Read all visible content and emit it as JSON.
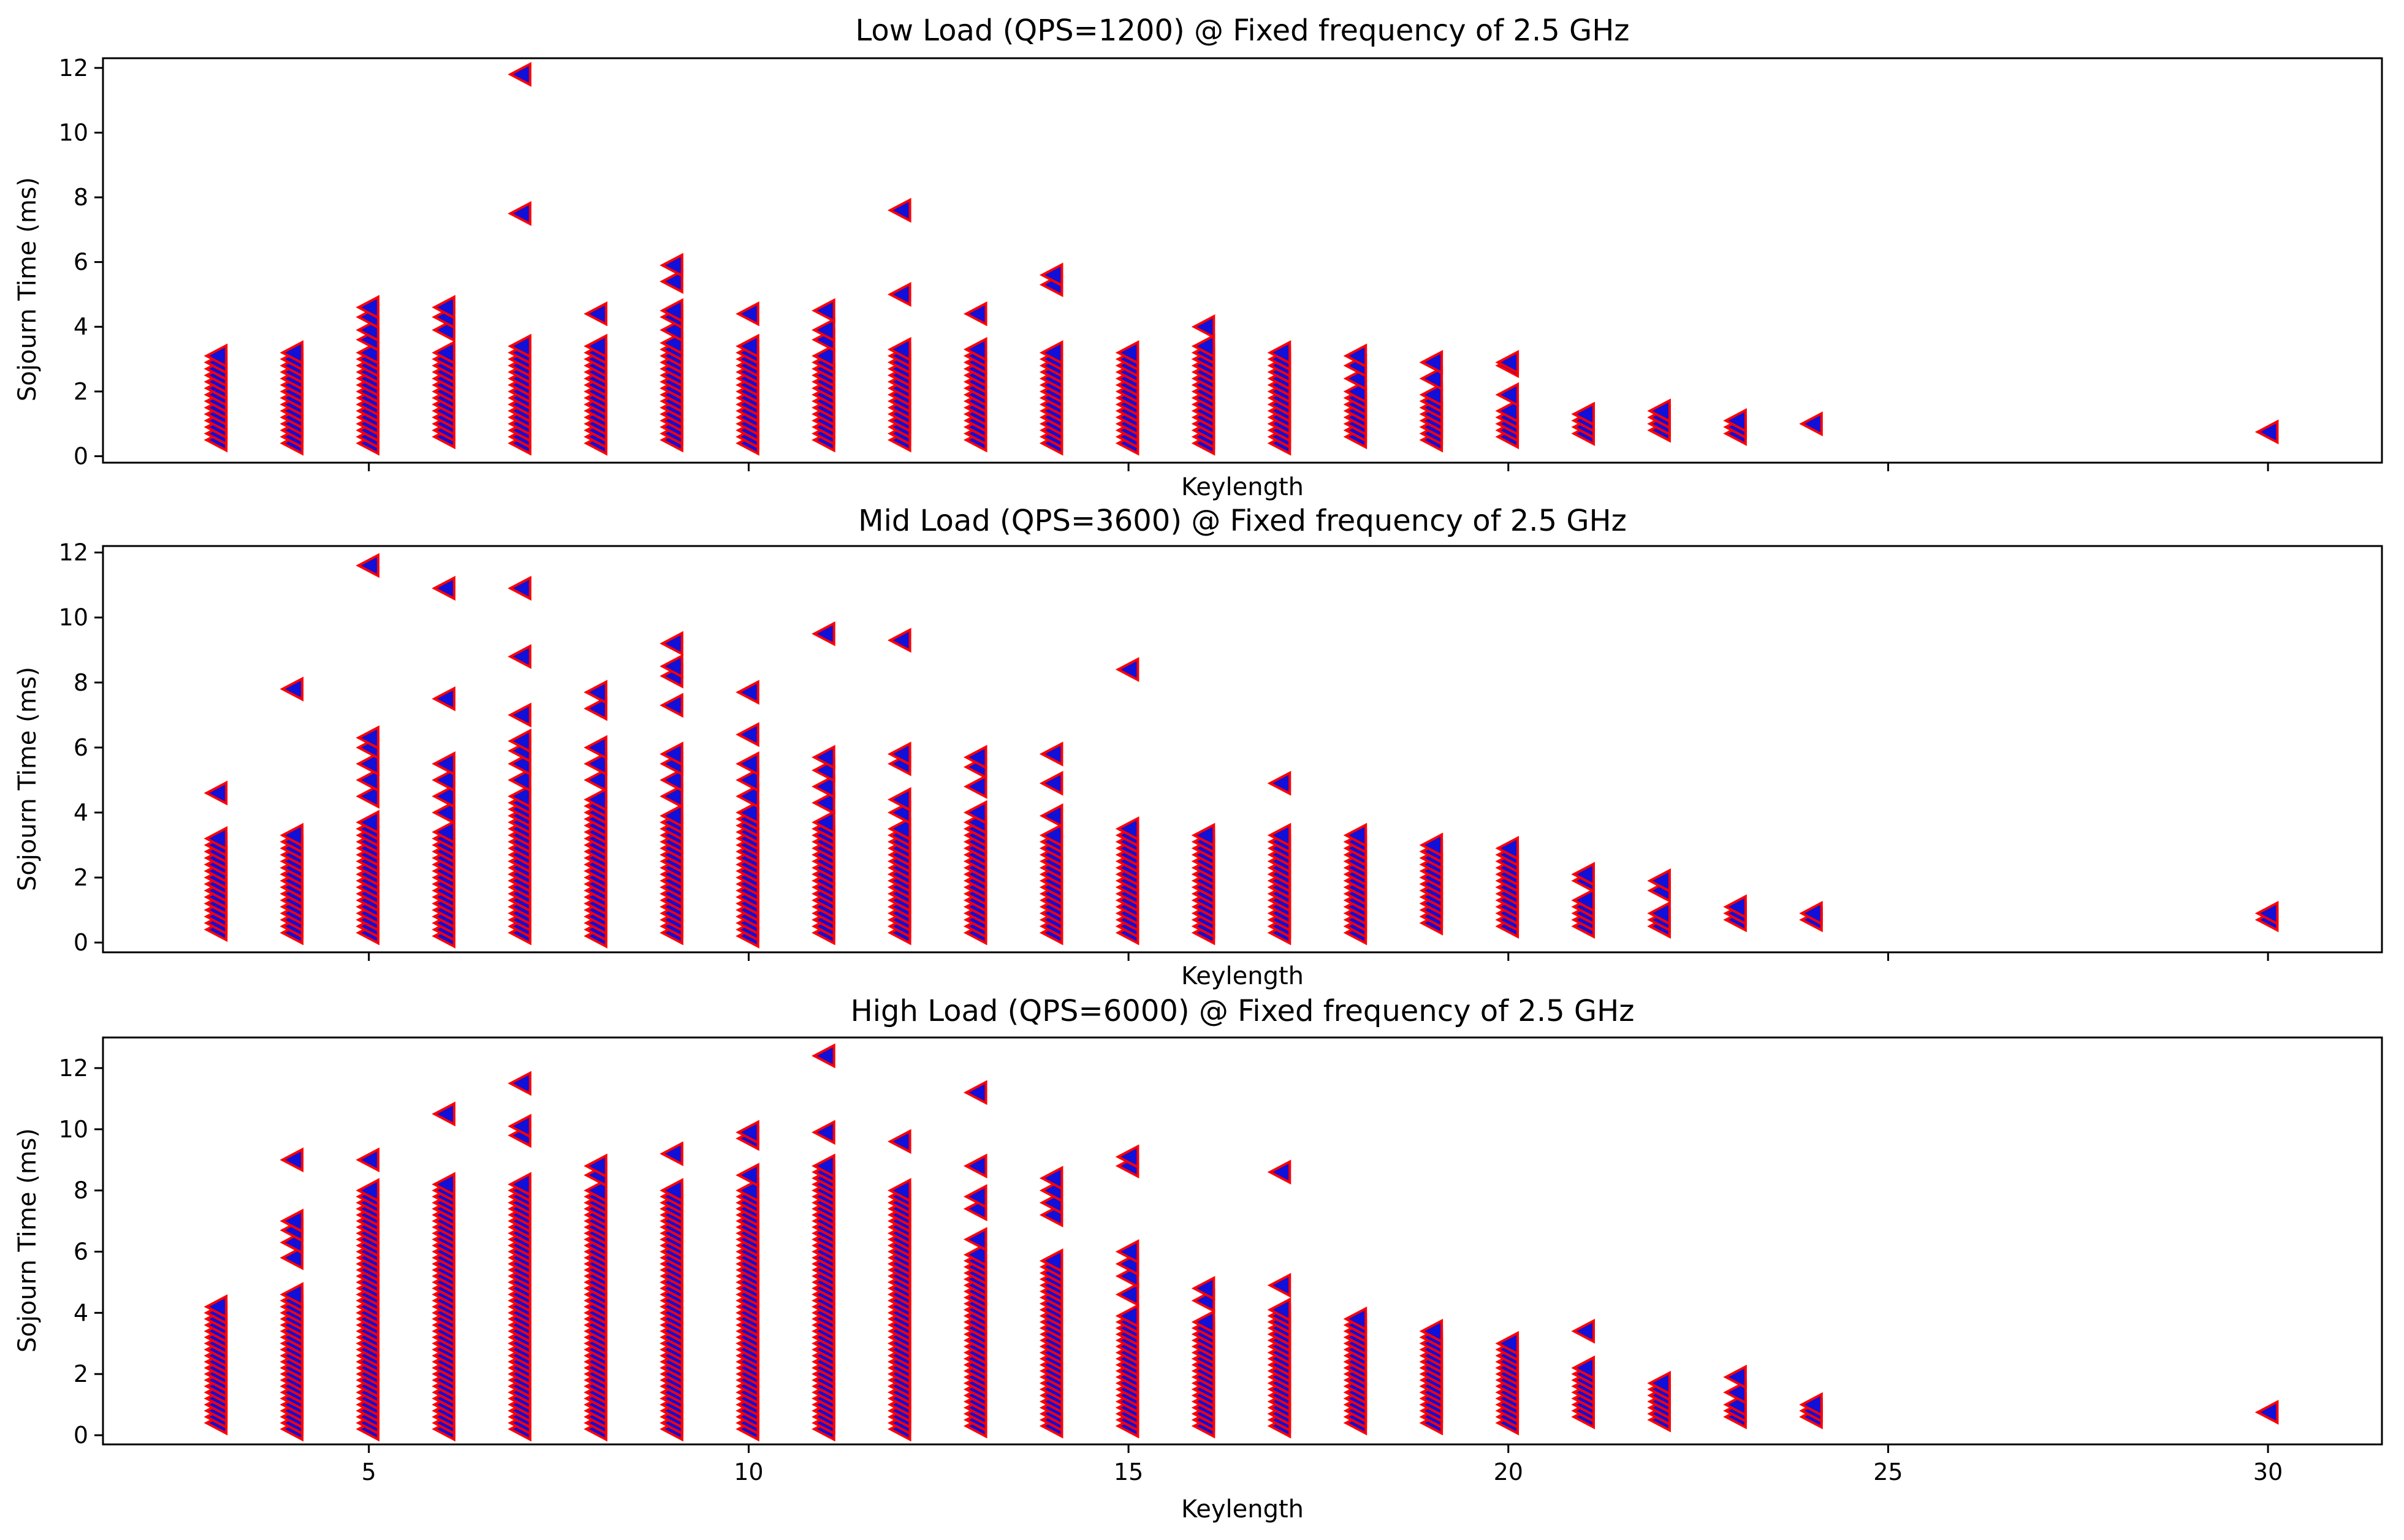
{
  "colors": {
    "marker_fill": "#1010d8",
    "marker_edge": "#ff0000"
  },
  "chart_data": [
    {
      "type": "scatter",
      "title": "Low Load (QPS=1200) @ Fixed frequency of 2.5 GHz",
      "xlabel": "Keylength",
      "ylabel": "Sojourn Time (ms)",
      "xlim": [
        1.5,
        31.5
      ],
      "ylim": [
        -0.2,
        12.3
      ],
      "xticks": [
        5,
        10,
        15,
        20,
        25,
        30
      ],
      "show_xticklabels": false,
      "yticks": [
        0,
        2,
        4,
        6,
        8,
        10,
        12
      ],
      "marker": "triangle-left",
      "grid": false,
      "clusters": [
        {
          "x": 3,
          "min": 0.5,
          "max": 3.2,
          "outliers": []
        },
        {
          "x": 4,
          "min": 0.4,
          "max": 3.2,
          "outliers": []
        },
        {
          "x": 5,
          "min": 0.4,
          "max": 3.2,
          "outliers": [
            3.6,
            3.9,
            4.3,
            4.6
          ]
        },
        {
          "x": 6,
          "min": 0.6,
          "max": 3.3,
          "outliers": [
            3.9,
            4.3,
            4.6
          ]
        },
        {
          "x": 7,
          "min": 0.4,
          "max": 3.4,
          "outliers": [
            7.5,
            11.8
          ]
        },
        {
          "x": 8,
          "min": 0.4,
          "max": 3.5,
          "outliers": [
            4.4
          ]
        },
        {
          "x": 9,
          "min": 0.5,
          "max": 3.5,
          "outliers": [
            3.9,
            4.3,
            4.5,
            5.4,
            5.9
          ]
        },
        {
          "x": 10,
          "min": 0.4,
          "max": 3.4,
          "outliers": [
            4.4
          ]
        },
        {
          "x": 11,
          "min": 0.5,
          "max": 3.2,
          "outliers": [
            3.6,
            3.9,
            4.5
          ]
        },
        {
          "x": 12,
          "min": 0.5,
          "max": 3.4,
          "outliers": [
            5.0,
            7.6
          ]
        },
        {
          "x": 13,
          "min": 0.5,
          "max": 3.4,
          "outliers": [
            4.4
          ]
        },
        {
          "x": 14,
          "min": 0.4,
          "max": 3.2,
          "outliers": [
            5.3,
            5.6
          ]
        },
        {
          "x": 15,
          "min": 0.4,
          "max": 3.3,
          "outliers": []
        },
        {
          "x": 16,
          "min": 0.4,
          "max": 3.2,
          "outliers": [
            3.4,
            4.0
          ]
        },
        {
          "x": 17,
          "min": 0.4,
          "max": 3.2,
          "outliers": []
        },
        {
          "x": 18,
          "min": 0.6,
          "max": 2.0,
          "outliers": [
            2.4,
            2.8,
            3.1
          ]
        },
        {
          "x": 19,
          "min": 0.5,
          "max": 2.0,
          "outliers": [
            2.4,
            2.9
          ]
        },
        {
          "x": 20,
          "min": 0.6,
          "max": 1.4,
          "outliers": [
            1.9,
            2.8,
            2.9
          ]
        },
        {
          "x": 21,
          "min": 0.7,
          "max": 1.4,
          "outliers": []
        },
        {
          "x": 22,
          "min": 0.8,
          "max": 1.5,
          "outliers": []
        },
        {
          "x": 23,
          "min": 0.7,
          "max": 1.1,
          "outliers": []
        },
        {
          "x": 24,
          "min": 1.0,
          "max": 1.0,
          "outliers": []
        },
        {
          "x": 30,
          "min": 0.75,
          "max": 0.75,
          "outliers": []
        }
      ]
    },
    {
      "type": "scatter",
      "title": "Mid Load (QPS=3600) @ Fixed frequency of 2.5 GHz",
      "xlabel": "Keylength",
      "ylabel": "Sojourn Time (ms)",
      "xlim": [
        1.5,
        31.5
      ],
      "ylim": [
        -0.3,
        12.2
      ],
      "xticks": [
        5,
        10,
        15,
        20,
        25,
        30
      ],
      "show_xticklabels": false,
      "yticks": [
        0,
        2,
        4,
        6,
        8,
        10,
        12
      ],
      "marker": "triangle-left",
      "grid": false,
      "clusters": [
        {
          "x": 3,
          "min": 0.4,
          "max": 3.3,
          "outliers": [
            4.6
          ]
        },
        {
          "x": 4,
          "min": 0.3,
          "max": 3.3,
          "outliers": [
            7.8
          ]
        },
        {
          "x": 5,
          "min": 0.3,
          "max": 3.8,
          "outliers": [
            4.5,
            5.0,
            5.5,
            6.0,
            6.3,
            11.6
          ]
        },
        {
          "x": 6,
          "min": 0.2,
          "max": 3.5,
          "outliers": [
            4.0,
            4.5,
            5.0,
            5.5,
            7.5,
            10.9
          ]
        },
        {
          "x": 7,
          "min": 0.3,
          "max": 4.5,
          "outliers": [
            5.0,
            5.5,
            5.9,
            6.2,
            7.0,
            8.8,
            10.9
          ]
        },
        {
          "x": 8,
          "min": 0.2,
          "max": 4.5,
          "outliers": [
            5.0,
            5.5,
            6.0,
            7.2,
            7.7
          ]
        },
        {
          "x": 9,
          "min": 0.3,
          "max": 4.0,
          "outliers": [
            4.5,
            5.0,
            5.5,
            5.8,
            7.3,
            8.2,
            8.5,
            9.2
          ]
        },
        {
          "x": 10,
          "min": 0.2,
          "max": 4.0,
          "outliers": [
            4.5,
            5.0,
            5.5,
            6.4,
            7.7
          ]
        },
        {
          "x": 11,
          "min": 0.3,
          "max": 3.8,
          "outliers": [
            4.3,
            4.8,
            5.3,
            5.7,
            9.5
          ]
        },
        {
          "x": 12,
          "min": 0.3,
          "max": 3.6,
          "outliers": [
            4.0,
            4.4,
            5.5,
            5.8,
            9.3
          ]
        },
        {
          "x": 13,
          "min": 0.3,
          "max": 3.7,
          "outliers": [
            4.0,
            4.8,
            5.4,
            5.7
          ]
        },
        {
          "x": 14,
          "min": 0.3,
          "max": 3.4,
          "outliers": [
            3.9,
            4.9,
            5.8
          ]
        },
        {
          "x": 15,
          "min": 0.3,
          "max": 3.6,
          "outliers": [
            8.4
          ]
        },
        {
          "x": 16,
          "min": 0.3,
          "max": 3.3,
          "outliers": []
        },
        {
          "x": 17,
          "min": 0.3,
          "max": 3.3,
          "outliers": [
            4.9
          ]
        },
        {
          "x": 18,
          "min": 0.3,
          "max": 3.3,
          "outliers": []
        },
        {
          "x": 19,
          "min": 0.6,
          "max": 3.0,
          "outliers": []
        },
        {
          "x": 20,
          "min": 0.5,
          "max": 2.9,
          "outliers": []
        },
        {
          "x": 21,
          "min": 0.5,
          "max": 1.4,
          "outliers": [
            1.9,
            2.1
          ]
        },
        {
          "x": 22,
          "min": 0.5,
          "max": 0.9,
          "outliers": [
            1.6,
            1.9
          ]
        },
        {
          "x": 23,
          "min": 0.7,
          "max": 1.2,
          "outliers": []
        },
        {
          "x": 24,
          "min": 0.7,
          "max": 0.9,
          "outliers": []
        },
        {
          "x": 30,
          "min": 0.7,
          "max": 1.0,
          "outliers": []
        }
      ]
    },
    {
      "type": "scatter",
      "title": "High Load (QPS=6000) @ Fixed frequency of 2.5 GHz",
      "xlabel": "Keylength",
      "ylabel": "Sojourn Time (ms)",
      "xlim": [
        1.5,
        31.5
      ],
      "ylim": [
        -0.3,
        13.0
      ],
      "xticks": [
        5,
        10,
        15,
        20,
        25,
        30
      ],
      "show_xticklabels": true,
      "yticks": [
        0,
        2,
        4,
        6,
        8,
        10,
        12
      ],
      "marker": "triangle-left",
      "grid": false,
      "clusters": [
        {
          "x": 3,
          "min": 0.4,
          "max": 4.3,
          "outliers": []
        },
        {
          "x": 4,
          "min": 0.2,
          "max": 4.7,
          "outliers": [
            5.8,
            6.3,
            6.7,
            7.0,
            9.0
          ]
        },
        {
          "x": 5,
          "min": 0.2,
          "max": 8.0,
          "outliers": [
            9.0
          ]
        },
        {
          "x": 6,
          "min": 0.2,
          "max": 8.3,
          "outliers": [
            10.5
          ]
        },
        {
          "x": 7,
          "min": 0.2,
          "max": 8.2,
          "outliers": [
            9.8,
            10.1,
            11.5
          ]
        },
        {
          "x": 8,
          "min": 0.2,
          "max": 8.0,
          "outliers": [
            8.5,
            8.8
          ]
        },
        {
          "x": 9,
          "min": 0.2,
          "max": 8.0,
          "outliers": [
            9.2
          ]
        },
        {
          "x": 10,
          "min": 0.2,
          "max": 8.0,
          "outliers": [
            8.5,
            9.7,
            9.9
          ]
        },
        {
          "x": 11,
          "min": 0.2,
          "max": 8.8,
          "outliers": [
            9.9,
            12.4
          ]
        },
        {
          "x": 12,
          "min": 0.2,
          "max": 8.0,
          "outliers": [
            9.6
          ]
        },
        {
          "x": 13,
          "min": 0.3,
          "max": 6.0,
          "outliers": [
            6.4,
            7.4,
            7.8,
            8.8,
            11.2
          ]
        },
        {
          "x": 14,
          "min": 0.3,
          "max": 5.8,
          "outliers": [
            7.2,
            7.6,
            8.0,
            8.4
          ]
        },
        {
          "x": 15,
          "min": 0.3,
          "max": 4.0,
          "outliers": [
            4.6,
            5.2,
            5.6,
            6.0,
            8.8,
            9.1
          ]
        },
        {
          "x": 16,
          "min": 0.3,
          "max": 3.8,
          "outliers": [
            4.4,
            4.8
          ]
        },
        {
          "x": 17,
          "min": 0.3,
          "max": 4.1,
          "outliers": [
            4.9,
            8.6
          ]
        },
        {
          "x": 18,
          "min": 0.4,
          "max": 3.8,
          "outliers": []
        },
        {
          "x": 19,
          "min": 0.4,
          "max": 3.4,
          "outliers": []
        },
        {
          "x": 20,
          "min": 0.4,
          "max": 3.0,
          "outliers": []
        },
        {
          "x": 21,
          "min": 0.6,
          "max": 2.3,
          "outliers": [
            3.4
          ]
        },
        {
          "x": 22,
          "min": 0.5,
          "max": 1.7,
          "outliers": []
        },
        {
          "x": 23,
          "min": 0.6,
          "max": 1.0,
          "outliers": [
            1.4,
            1.9
          ]
        },
        {
          "x": 24,
          "min": 0.6,
          "max": 1.1,
          "outliers": []
        },
        {
          "x": 30,
          "min": 0.75,
          "max": 0.75,
          "outliers": []
        }
      ]
    }
  ]
}
